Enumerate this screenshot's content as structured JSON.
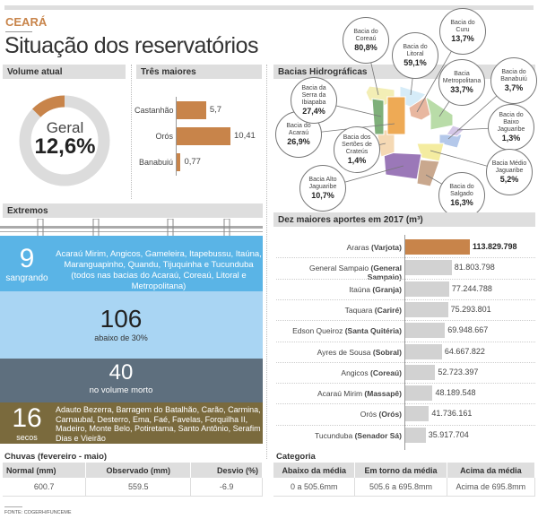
{
  "header": {
    "kicker": "CEARÁ",
    "title": "Situação dos reservatórios"
  },
  "volume": {
    "heading": "Volume atual",
    "label": "Geral",
    "value_text": "12,6%",
    "value": 12.6,
    "colors": {
      "fill": "#c8844a",
      "track": "#dcdcdc"
    }
  },
  "tres": {
    "heading": "Três maiores"
  },
  "bacias": {
    "heading": "Bacias Hidrográficas",
    "items": [
      {
        "name": "Bacia do Coreaú",
        "value": "80,8%",
        "color": "#f3eeb5"
      },
      {
        "name": "Bacia do Litoral",
        "value": "59,1%",
        "color": "#d6ecf8"
      },
      {
        "name": "Bacia do Curu",
        "value": "13,7%",
        "color": "#e8b7a0"
      },
      {
        "name": "Bacia Metropolitana",
        "value": "33,7%",
        "color": "#b9dca8"
      },
      {
        "name": "Bacia do Banabuiú",
        "value": "3,7%",
        "color": "#b4c8ea"
      },
      {
        "name": "Bacia do Baixo Jaguaribe",
        "value": "1,3%",
        "color": "#d5c8e8"
      },
      {
        "name": "Bacia Médio Jaguaribe",
        "value": "5,2%",
        "color": "#f4eca0"
      },
      {
        "name": "Bacia do Salgado",
        "value": "16,3%",
        "color": "#c9a88e"
      },
      {
        "name": "Bacia Alto Jaguaribe",
        "value": "10,7%",
        "color": "#9b78b8"
      },
      {
        "name": "Bacia dos Sertões de Crateús",
        "value": "1,4%",
        "color": "#f5d9b4"
      },
      {
        "name": "Bacia do Acaraú",
        "value": "26,9%",
        "color": "#eeaa55"
      },
      {
        "name": "Bacia da Serra da Ibiapaba",
        "value": "27,4%",
        "color": "#7fb07a"
      }
    ]
  },
  "extremos": {
    "heading": "Extremos",
    "bands": [
      {
        "count": "9",
        "label": "sangrando",
        "text": "Acaraú Mirim, Angicos, Gameleira, Itapebussu, Itaúna, Maranguapinho, Quandu, Tijuquinha e Tucunduba (todos nas bacias do Acaraú, Coreaú, Litoral e Metropolitana)",
        "color": "#5ab4e6"
      },
      {
        "count": "106",
        "label": "abaixo de 30%",
        "color": "#a9d5f3"
      },
      {
        "count": "40",
        "label": "no volume morto",
        "color": "#5e6f7e"
      },
      {
        "count": "16",
        "label": "secos",
        "text": "Adauto Bezerra, Barragem do Batalhão, Carão, Carmina, Carnaubal, Desterro, Ema, Faé, Favelas, Forquilha II, Madeiro, Monte Belo, Potiretama, Santo Antônio, Serafim Dias e Vieirão",
        "color": "#7a6a3d"
      }
    ]
  },
  "aportes": {
    "heading": "Dez maiores aportes em 2017 (m³)"
  },
  "chart_data": [
    {
      "type": "pie",
      "subtype": "donut",
      "values": [
        12.6,
        87.4
      ],
      "label": "Geral",
      "value_text": "12,6%"
    },
    {
      "type": "bar",
      "orientation": "horizontal",
      "title": "Três maiores",
      "categories": [
        "Castanhão",
        "Orós",
        "Banabuiú"
      ],
      "values": [
        5.7,
        10.41,
        0.77
      ],
      "value_labels": [
        "5,7",
        "10,41",
        "0,77"
      ],
      "color": "#c8844a"
    },
    {
      "type": "bar",
      "orientation": "horizontal",
      "title": "Dez maiores aportes em 2017 (m³)",
      "categories": [
        {
          "name": "Araras",
          "city": "(Varjota)"
        },
        {
          "name": "General Sampaio",
          "city": "(General Sampaio)"
        },
        {
          "name": "Itaúna",
          "city": "(Granja)"
        },
        {
          "name": "Taquara",
          "city": "(Cariré)"
        },
        {
          "name": "Edson Queiroz",
          "city": "(Santa Quitéria)"
        },
        {
          "name": "Ayres de Sousa",
          "city": "(Sobral)"
        },
        {
          "name": "Angicos",
          "city": "(Coreaú)"
        },
        {
          "name": "Acaraú Mirim",
          "city": "(Massapê)"
        },
        {
          "name": "Orós",
          "city": "(Orós)"
        },
        {
          "name": "Tucunduba",
          "city": "(Senador Sá)"
        }
      ],
      "values": [
        113829798,
        81803798,
        77244788,
        75293801,
        69948667,
        64667822,
        52723397,
        48189548,
        41736161,
        35917704
      ],
      "value_labels": [
        "113.829.798",
        "81.803.798",
        "77.244.788",
        "75.293.801",
        "69.948.667",
        "64.667.822",
        "52.723.397",
        "48.189.548",
        "41.736.161",
        "35.917.704"
      ],
      "colors": {
        "highlight": "#c8844a",
        "default": "#d2d2d2"
      }
    }
  ],
  "chuvas": {
    "heading": "Chuvas (fevereiro - maio)",
    "columns": [
      "Normal (mm)",
      "Observado (mm)",
      "Desvio (%)"
    ],
    "row": [
      "600.7",
      "559.5",
      "-6.9"
    ]
  },
  "categoria": {
    "heading": "Categoria",
    "columns": [
      "Abaixo da média",
      "Em torno da média",
      "Acima da média"
    ],
    "row": [
      "0 a 505.6mm",
      "505.6 a 695.8mm",
      "Acima de 695.8mm"
    ]
  },
  "source": "FONTE: COGERH/FUNCEME"
}
